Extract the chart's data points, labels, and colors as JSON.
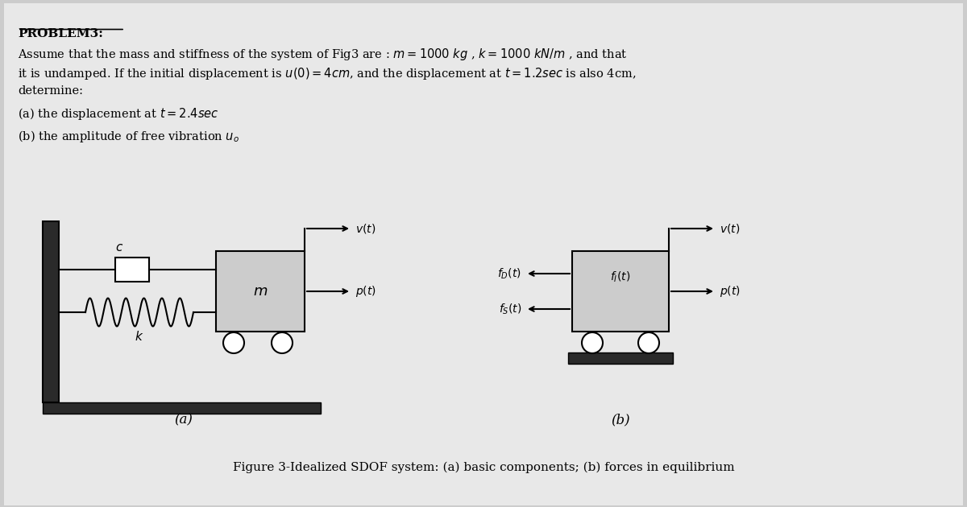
{
  "bg_color": "#cccccc",
  "panel_color": "#e8e8e8",
  "title": "PROBLEM3:",
  "line1": "Assume that the mass and stiffness of the system of Fig3 are : $m = 1000\\ kg$ , $k = 1000\\ kN/m$ , and that",
  "line2": "it is undamped. If the initial displacement is $u(0) = 4cm$, and the displacement at $t = 1.2sec$ is also 4cm,",
  "line3": "determine:",
  "part_a": "(a) the displacement at $t = 2.4sec$",
  "part_b": "(b) the amplitude of free vibration $u_o$",
  "label_a": "(a)",
  "label_b": "(b)",
  "caption": "Figure 3-Idealized SDOF system: (a) basic components; (b) forces in equilibrium"
}
